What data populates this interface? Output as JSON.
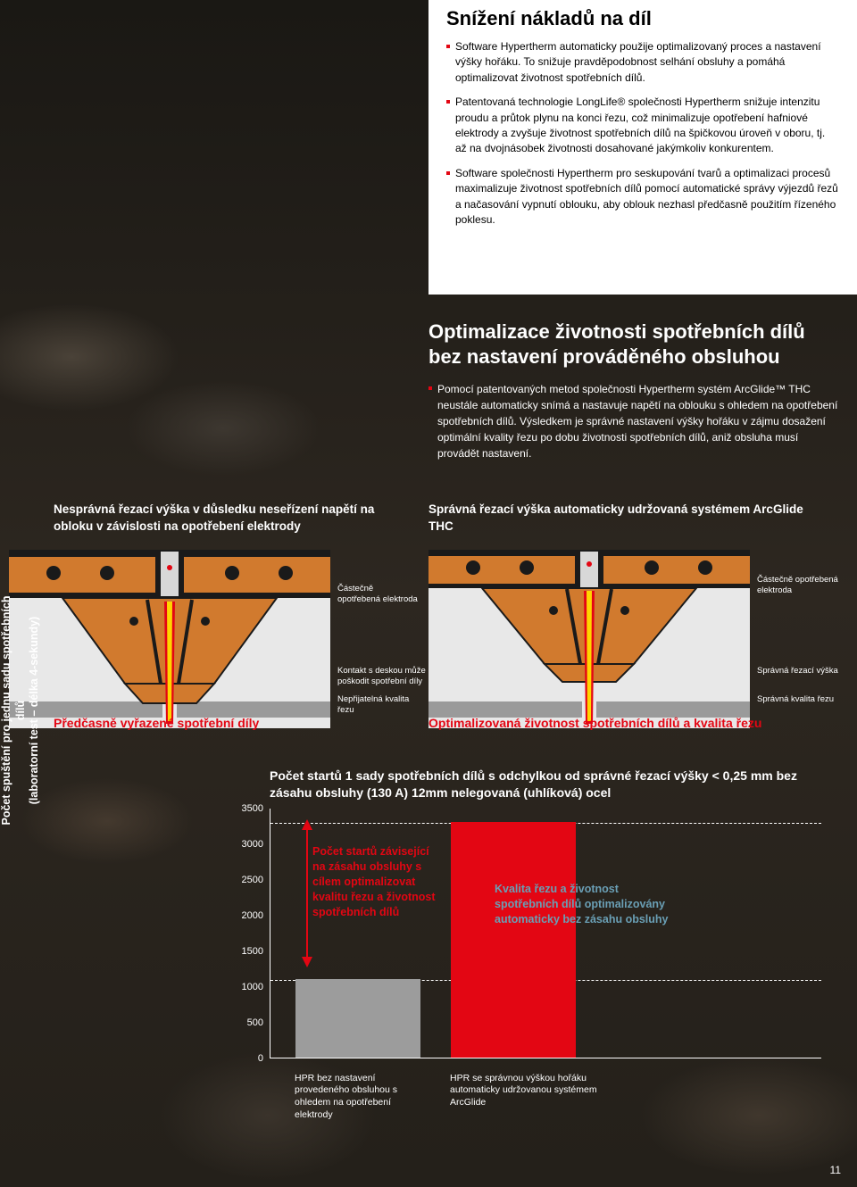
{
  "page_number": "11",
  "section1": {
    "title": "Snížení nákladů na díl",
    "bullets": [
      "Software Hypertherm automaticky použije optimalizovaný proces a nastavení výšky hořáku. To snižuje pravděpodobnost selhání obsluhy a pomáhá optimalizovat životnost spotřebních dílů.",
      "Patentovaná technologie LongLife® společnosti Hypertherm snižuje intenzitu proudu a průtok plynu na konci řezu, což minimalizuje opotřebení hafniové elektrody a zvyšuje životnost spotřebních dílů na špičkovou úroveň v oboru, tj. až na dvojnásobek životnosti dosahované jakýmkoliv konkurentem.",
      "Software společnosti Hypertherm pro seskupování tvarů a optimalizaci procesů maximalizuje životnost spotřebních dílů pomocí automatické správy výjezdů řezů a načasování vypnutí oblouku, aby oblouk nezhasl předčasně použitím řízeného poklesu."
    ]
  },
  "section2": {
    "title": "Optimalizace životnosti spotřebních dílů bez nastavení prováděného obsluhou",
    "bullet": "Pomocí patentovaných metod společnosti Hypertherm systém ArcGlide™ THC neustále automaticky snímá a nastavuje napětí na oblouku s ohledem na opotřebení spotřebních dílů. Výsledkem je správné nastavení výšky hořáku v zájmu dosažení optimální kvality řezu po dobu životnosti spotřebních dílů, aniž obsluha musí provádět nastavení."
  },
  "captions": {
    "left": "Nesprávná řezací výška v důsledku neseřízení napětí na obloku v závislosti na opotřebení elektrody",
    "right": "Správná řezací výška automaticky udržovaná systémem ArcGlide THC"
  },
  "diagrams": {
    "left": {
      "label_right": "Částečně opotřebená elektroda",
      "note1": "Kontakt s deskou může poškodit spotřební díly",
      "note2": "Nepřijatelná kvalita řezu",
      "conclusion": "Předčasně vyřazené spotřební díly"
    },
    "right": {
      "label_right": "Částečně opotřebená elektroda",
      "note1": "Správná řezací výška",
      "note2": "Správná kvalita řezu",
      "conclusion": "Optimalizovaná životnost spotřebních dílů a kvalita řezu"
    },
    "colors": {
      "body": "#d17a2e",
      "dark": "#1a1a1a",
      "plate": "#9a9a9a",
      "flame_outer": "#e30613",
      "flame_inner": "#ffd400",
      "electrode": "#d8d8d8"
    }
  },
  "chart": {
    "title": "Počet startů 1 sady spotřebních dílů s odchylkou od správné řezací výšky < 0,25 mm bez zásahu obsluhy (130 A) 12mm nelegovaná (uhlíková) ocel",
    "y_axis_label": "Počet spuštění pro jednu sadu spotřebních dílů\n(laboratorní test – délka 4-sekundy)",
    "y_max": 3500,
    "y_ticks": [
      0,
      500,
      1000,
      1500,
      2000,
      2500,
      3000,
      3500
    ],
    "dashed_lines_at": [
      1100,
      3300
    ],
    "bars": [
      {
        "label": "HPR bez nastavení provedeného obsluhou s ohledem na opotřebení elektrody",
        "value": 1100,
        "color": "#9c9c9c"
      },
      {
        "label": "HPR se správnou výškou hořáku automaticky udržovanou systémem ArcGlide",
        "value": 3300,
        "color": "#e30613"
      }
    ],
    "annotation_red": "Počet startů závisející na zásahu obsluhy s cílem optimalizovat kvalitu řezu a životnost spotřebních dílů",
    "annotation_blue": "Kvalita řezu a životnost spotřebních dílů optimalizovány automaticky bez zásahu obsluhy",
    "arrow_color": "#e30613"
  }
}
